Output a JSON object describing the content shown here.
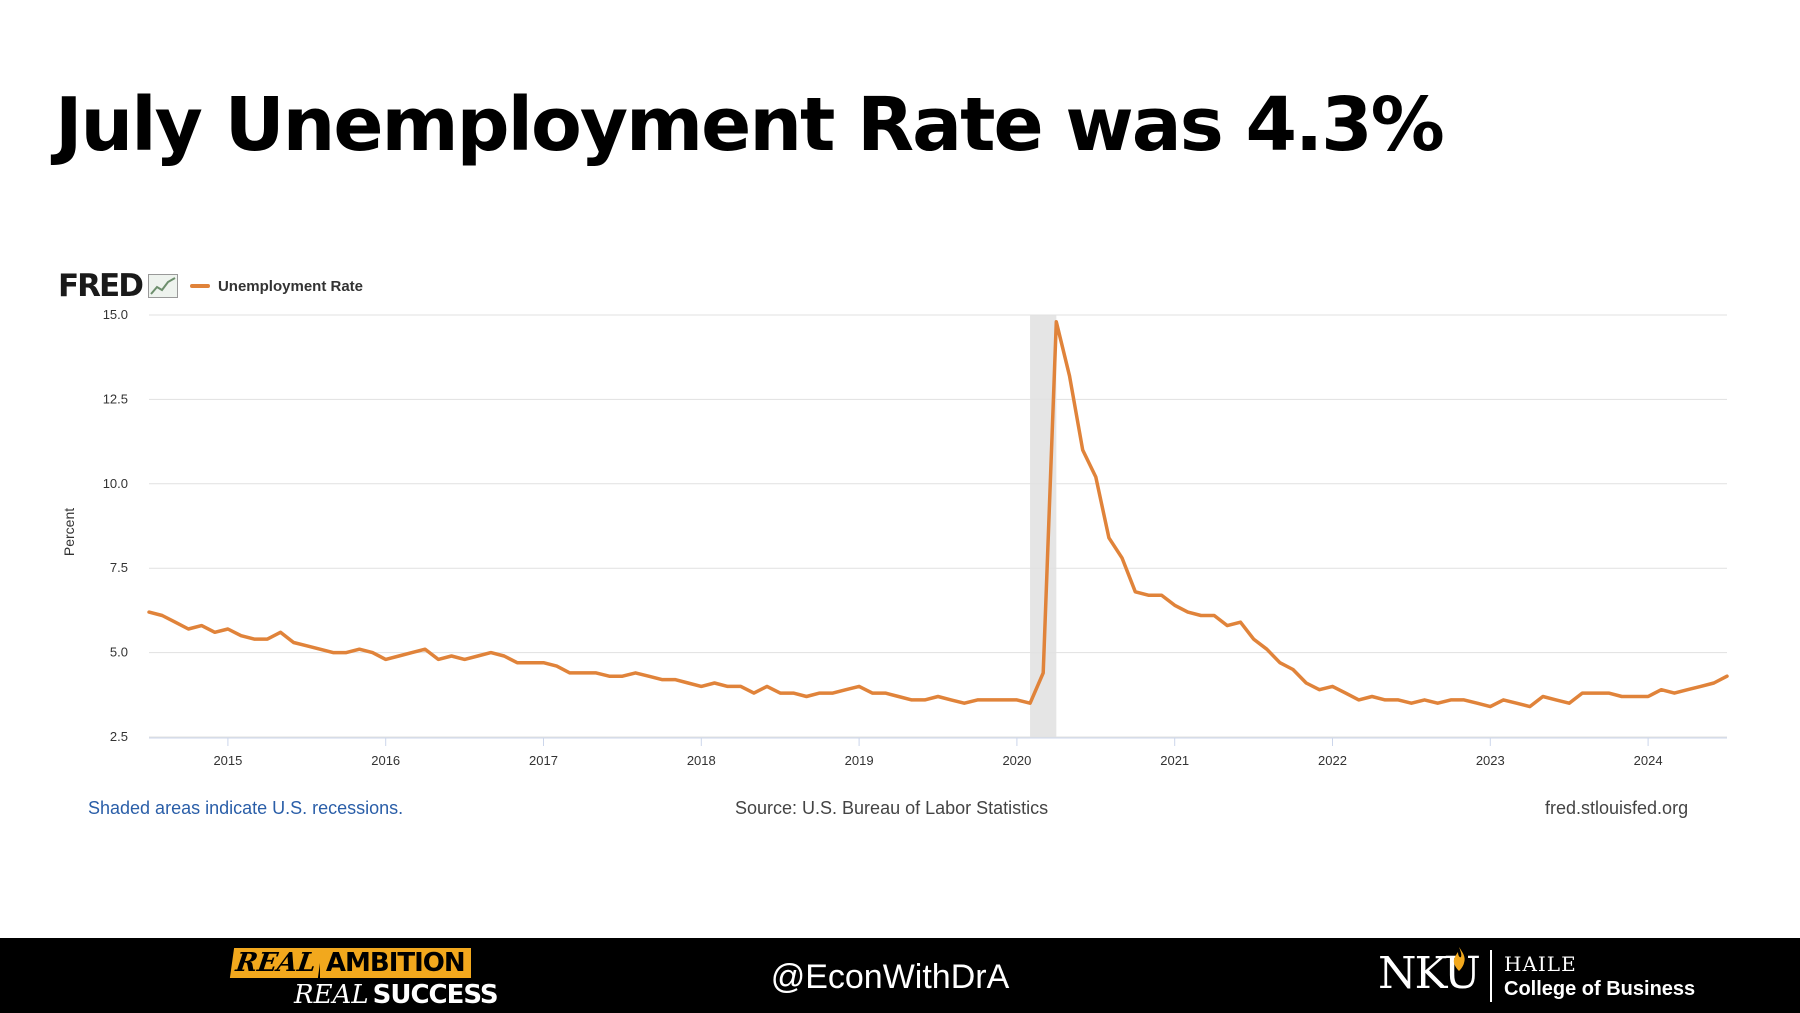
{
  "slide": {
    "title": "July Unemployment Rate was 4.3%"
  },
  "fred": {
    "logo_text": "FRED",
    "legend_label": "Unemployment Rate",
    "line_color": "#e0833a",
    "recession_color": "#e5e5e5"
  },
  "chart_data": {
    "type": "line",
    "title": "",
    "xlabel": "",
    "ylabel": "Percent",
    "ylim": [
      2.5,
      15.0
    ],
    "yticks": [
      "2.5",
      "5.0",
      "7.5",
      "10.0",
      "12.5",
      "15.0"
    ],
    "xticks": [
      "2015",
      "2016",
      "2017",
      "2018",
      "2019",
      "2020",
      "2021",
      "2022",
      "2023",
      "2024"
    ],
    "grid": true,
    "legend_position": "top-left",
    "start": "2014-07",
    "end": "2024-07",
    "recessions": [
      {
        "start": "2020-02",
        "end": "2020-04"
      }
    ],
    "series": [
      {
        "name": "Unemployment Rate",
        "frequency": "monthly",
        "start": "2014-07",
        "values": [
          6.2,
          6.1,
          5.9,
          5.7,
          5.8,
          5.6,
          5.7,
          5.5,
          5.4,
          5.4,
          5.6,
          5.3,
          5.2,
          5.1,
          5.0,
          5.0,
          5.1,
          5.0,
          4.8,
          4.9,
          5.0,
          5.1,
          4.8,
          4.9,
          4.8,
          4.9,
          5.0,
          4.9,
          4.7,
          4.7,
          4.7,
          4.6,
          4.4,
          4.4,
          4.4,
          4.3,
          4.3,
          4.4,
          4.3,
          4.2,
          4.2,
          4.1,
          4.0,
          4.1,
          4.0,
          4.0,
          3.8,
          4.0,
          3.8,
          3.8,
          3.7,
          3.8,
          3.8,
          3.9,
          4.0,
          3.8,
          3.8,
          3.7,
          3.6,
          3.6,
          3.7,
          3.6,
          3.5,
          3.6,
          3.6,
          3.6,
          3.6,
          3.5,
          4.4,
          14.8,
          13.2,
          11.0,
          10.2,
          8.4,
          7.8,
          6.8,
          6.7,
          6.7,
          6.4,
          6.2,
          6.1,
          6.1,
          5.8,
          5.9,
          5.4,
          5.1,
          4.7,
          4.5,
          4.1,
          3.9,
          4.0,
          3.8,
          3.6,
          3.7,
          3.6,
          3.6,
          3.5,
          3.6,
          3.5,
          3.6,
          3.6,
          3.5,
          3.4,
          3.6,
          3.5,
          3.4,
          3.7,
          3.6,
          3.5,
          3.8,
          3.8,
          3.8,
          3.7,
          3.7,
          3.7,
          3.9,
          3.8,
          3.9,
          4.0,
          4.1,
          4.3
        ]
      }
    ]
  },
  "footer_notes": {
    "recession_note": "Shaded areas indicate U.S. recessions.",
    "source": "Source: U.S. Bureau of Labor Statistics",
    "site": "fred.stlouisfed.org"
  },
  "bottom_bar": {
    "tagline_real_1": "REAL",
    "tagline_ambition": "AMBITION",
    "tagline_real_2": "REAL",
    "tagline_success": "SUCCESS",
    "handle": "@EconWithDrA",
    "nku": "NKU",
    "haile": "HAILE",
    "college": "College of Business",
    "brand_gold": "#f2a81d"
  }
}
